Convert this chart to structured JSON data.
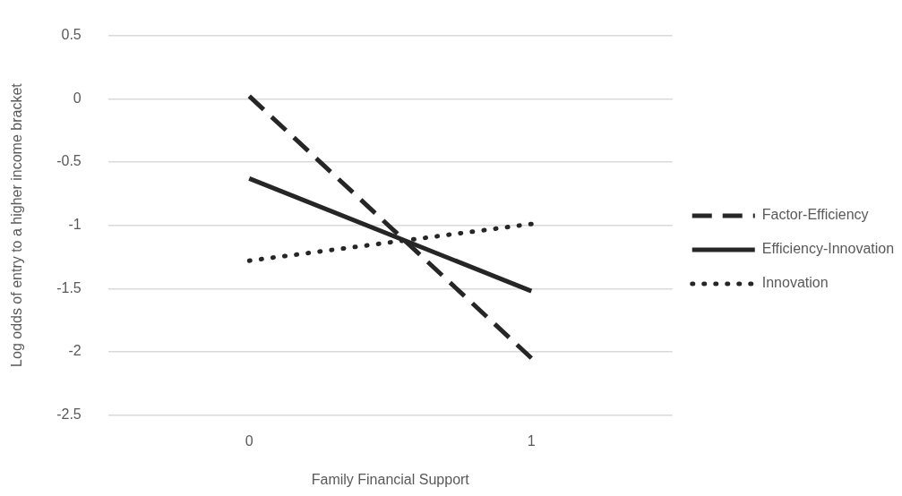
{
  "chart_data": {
    "type": "line",
    "xlabel": "Family Financial Support",
    "ylabel": "Log odds of entry to a higher income bracket",
    "categories": [
      "0",
      "1"
    ],
    "series": [
      {
        "name": "Factor-Efficiency",
        "color": "#262626",
        "line_style": "dashed",
        "values": [
          0.02,
          -2.05
        ]
      },
      {
        "name": "Efficiency-Innovation",
        "color": "#262626",
        "line_style": "solid",
        "values": [
          -0.63,
          -1.52
        ]
      },
      {
        "name": "Innovation",
        "color": "#262626",
        "line_style": "dotted",
        "values": [
          -1.28,
          -0.99
        ]
      }
    ],
    "ylim": [
      -2.5,
      0.5
    ],
    "yticks": [
      -2.5,
      -2,
      -1.5,
      -1,
      -0.5,
      0,
      0.5
    ],
    "grid": "y",
    "legend": "right",
    "marker": "none"
  }
}
